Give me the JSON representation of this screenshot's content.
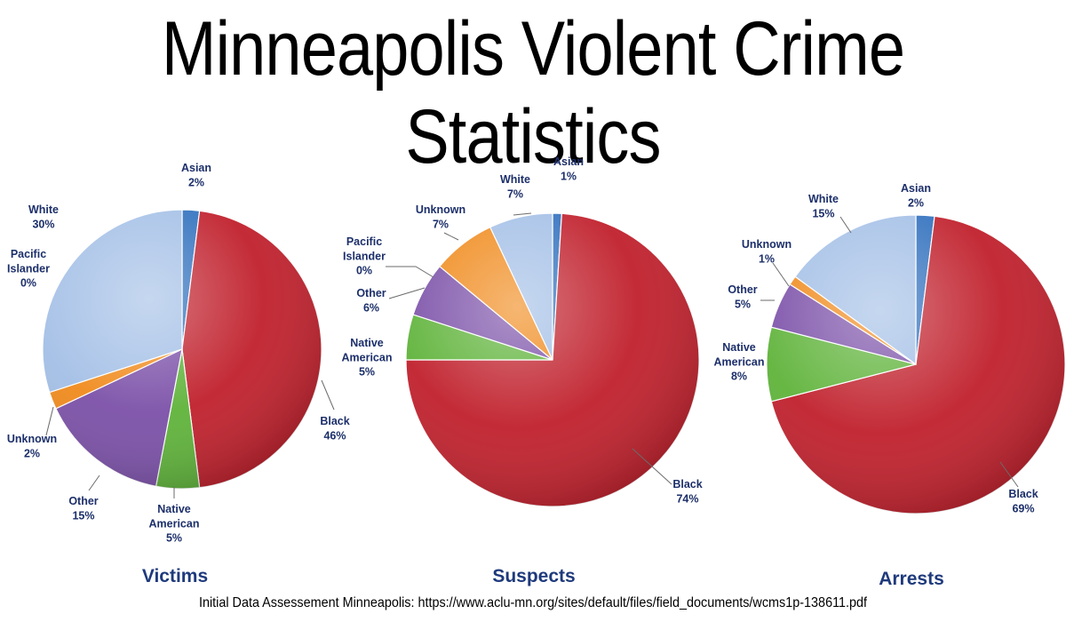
{
  "title": "Minneapolis Violent Crime Statistics",
  "source": "Initial Data Assessement Minneapolis: https://www.aclu-mn.org/sites/default/files/field_documents/wcms1p-138611.pdf",
  "colors": {
    "Asian": "#2f6fbd",
    "Black": "#c0202c",
    "Native American": "#5fb33a",
    "Other": "#7b50a8",
    "Unknown": "#f08a1c",
    "Pacific Islander": "#9ec8e8",
    "White": "#a3bfe6"
  },
  "chart_data": [
    {
      "type": "pie",
      "title": "Victims",
      "slices": [
        {
          "label": "Asian",
          "value": 2,
          "text": "Asian\n2%"
        },
        {
          "label": "Black",
          "value": 46,
          "text": "Black\n46%"
        },
        {
          "label": "Native American",
          "value": 5,
          "text": "Native\nAmerican\n5%"
        },
        {
          "label": "Other",
          "value": 15,
          "text": "Other\n15%"
        },
        {
          "label": "Unknown",
          "value": 2,
          "text": "Unknown\n2%"
        },
        {
          "label": "Pacific Islander",
          "value": 0,
          "text": "Pacific\nIslander\n0%"
        },
        {
          "label": "White",
          "value": 30,
          "text": "White\n30%"
        }
      ]
    },
    {
      "type": "pie",
      "title": "Suspects",
      "slices": [
        {
          "label": "Asian",
          "value": 1,
          "text": "Asian\n1%"
        },
        {
          "label": "Black",
          "value": 74,
          "text": "Black\n74%"
        },
        {
          "label": "Native American",
          "value": 5,
          "text": "Native\nAmerican\n5%"
        },
        {
          "label": "Other",
          "value": 6,
          "text": "Other\n6%"
        },
        {
          "label": "Pacific Islander",
          "value": 0,
          "text": "Pacific\nIslander\n0%"
        },
        {
          "label": "Unknown",
          "value": 7,
          "text": "Unknown\n7%"
        },
        {
          "label": "White",
          "value": 7,
          "text": "White\n7%"
        }
      ]
    },
    {
      "type": "pie",
      "title": "Arrests",
      "slices": [
        {
          "label": "Asian",
          "value": 2,
          "text": "Asian\n2%"
        },
        {
          "label": "Black",
          "value": 69,
          "text": "Black\n69%"
        },
        {
          "label": "Native American",
          "value": 8,
          "text": "Native\nAmerican\n8%"
        },
        {
          "label": "Other",
          "value": 5,
          "text": "Other\n5%"
        },
        {
          "label": "Unknown",
          "value": 1,
          "text": "Unknown\n1%"
        },
        {
          "label": "White",
          "value": 15,
          "text": "White\n15%"
        }
      ]
    }
  ]
}
